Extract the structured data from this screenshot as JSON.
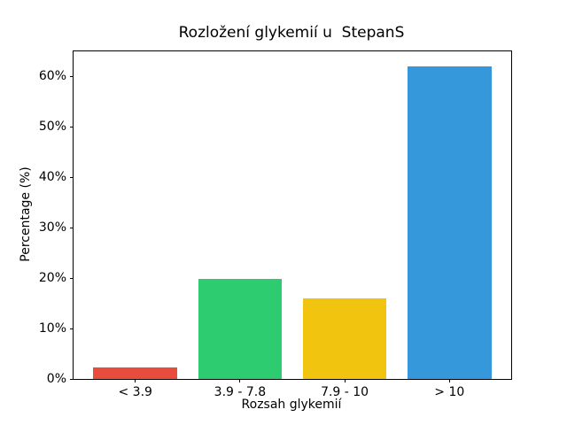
{
  "figure": {
    "background": "#ffffff",
    "axis_color": "#000000",
    "text_color": "#000000"
  },
  "chart_data": {
    "type": "bar",
    "title": "Rozložení glykemií u  StepanS",
    "xlabel": "Rozsah glykemií",
    "ylabel": "Percentage (%)",
    "categories": [
      "< 3.9",
      "3.9 - 7.8",
      "7.9 - 10",
      "> 10"
    ],
    "values": [
      2.2,
      19.8,
      16.0,
      62.0
    ],
    "bar_colors": [
      "#e74c3c",
      "#2ecc71",
      "#f1c40f",
      "#3498db"
    ],
    "yticks": [
      {
        "value": 0,
        "label": "0%"
      },
      {
        "value": 10,
        "label": "10%"
      },
      {
        "value": 20,
        "label": "20%"
      },
      {
        "value": 30,
        "label": "30%"
      },
      {
        "value": 40,
        "label": "40%"
      },
      {
        "value": 50,
        "label": "50%"
      },
      {
        "value": 60,
        "label": "60%"
      }
    ],
    "ylim": [
      0,
      65
    ],
    "xlim": [
      -0.59,
      3.59
    ],
    "bar_width": 0.8,
    "grid": false,
    "legend_position": "none"
  }
}
